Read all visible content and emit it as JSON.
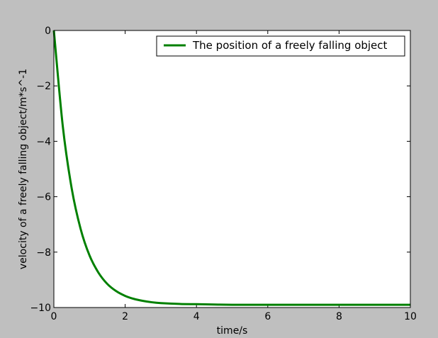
{
  "chart_data": {
    "type": "line",
    "title": "",
    "xlabel": "time/s",
    "ylabel": "velocity of a freely falling object/m*s^-1",
    "xlim": [
      0,
      10
    ],
    "ylim": [
      -10,
      0
    ],
    "x_ticks": [
      0,
      2,
      4,
      6,
      8,
      10
    ],
    "x_tick_labels": [
      "0",
      "2",
      "4",
      "6",
      "8",
      "10"
    ],
    "y_ticks": [
      0,
      -2,
      -4,
      -6,
      -8,
      -10
    ],
    "y_tick_labels": [
      "0",
      "−2",
      "−4",
      "−6",
      "−8",
      "−10"
    ],
    "grid": false,
    "legend": {
      "position": "top-right",
      "entries": [
        "The position of a freely falling object"
      ]
    },
    "series": [
      {
        "name": "The position of a freely falling object",
        "color": "#008000",
        "x": [
          0,
          0.25,
          0.5,
          0.75,
          1.0,
          1.25,
          1.5,
          1.75,
          2.0,
          2.25,
          2.5,
          2.75,
          3.0,
          3.5,
          4.0,
          4.5,
          5.0,
          6.0,
          7.0,
          8.0,
          9.0,
          10.0
        ],
        "y": [
          0,
          -3.45,
          -5.7,
          -7.16,
          -8.12,
          -8.74,
          -9.15,
          -9.41,
          -9.58,
          -9.69,
          -9.76,
          -9.81,
          -9.84,
          -9.87,
          -9.88,
          -9.89,
          -9.9,
          -9.9,
          -9.9,
          -9.9,
          -9.9,
          -9.9
        ]
      }
    ]
  }
}
